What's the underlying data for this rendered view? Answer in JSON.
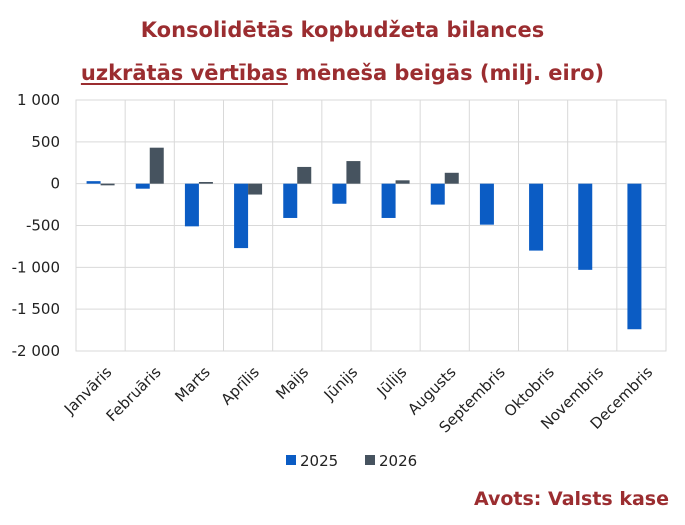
{
  "title": {
    "line1": "Konsolidētās kopbudžeta bilances",
    "line2_underlined": "uzkrātās vērtības",
    "line2_rest": " mēneša beigās (milj. eiro)"
  },
  "source": "Avots: Valsts kase",
  "colors": {
    "s2025": "#0b5cc4",
    "s2026": "#46535f",
    "title": "#9b2d30",
    "grid": "#d9d9d9"
  },
  "chart_data": {
    "type": "bar",
    "categories": [
      "Janvāris",
      "Februāris",
      "Marts",
      "Aprīlis",
      "Maijs",
      "Jūnijs",
      "Jūlijs",
      "Augusts",
      "Septembris",
      "Oktobris",
      "Novembris",
      "Decembris"
    ],
    "series": [
      {
        "name": "2025",
        "color": "#0b5cc4",
        "values": [
          30,
          -60,
          -510,
          -770,
          -410,
          -240,
          -410,
          -250,
          -490,
          -800,
          -1030,
          -1740
        ]
      },
      {
        "name": "2026",
        "color": "#46535f",
        "values": [
          -20,
          430,
          20,
          -130,
          200,
          270,
          40,
          130,
          null,
          null,
          null,
          null
        ]
      }
    ],
    "ylim": [
      -2000,
      1000
    ],
    "yticks": [
      1000,
      500,
      0,
      -500,
      -1000,
      -1500,
      -2000
    ],
    "ytick_labels": [
      "1 000",
      "500",
      "0",
      "-500",
      "-1 000",
      "-1 500",
      "-2 000"
    ],
    "grid": "horizontal",
    "legend": "bottom"
  }
}
